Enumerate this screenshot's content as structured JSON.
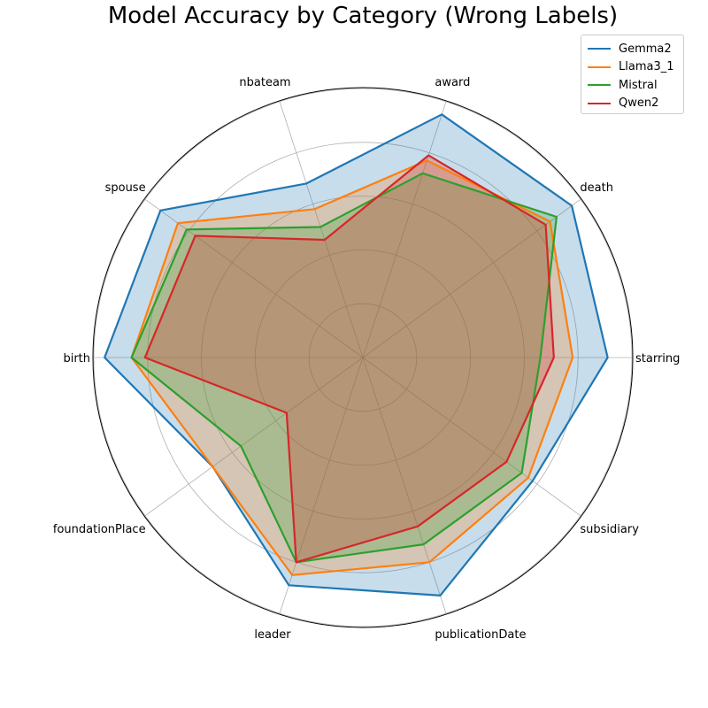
{
  "chart_data": {
    "type": "radar",
    "title": "Model Accuracy by Category (Wrong Labels)",
    "categories": [
      "starring",
      "death",
      "award",
      "nbateam",
      "spouse",
      "birth",
      "foundationPlace",
      "leader",
      "publicationDate",
      "subsidiary"
    ],
    "rlim": [
      0,
      100
    ],
    "grid": true,
    "legend_position": "top-right",
    "series": [
      {
        "name": "Gemma2",
        "color": "#1f77b4",
        "values": [
          91,
          96,
          95,
          68,
          93,
          96,
          69,
          89,
          93,
          78
        ]
      },
      {
        "name": "Llama3_1",
        "color": "#ff7f0e",
        "values": [
          78,
          86,
          77,
          58,
          85,
          86,
          69,
          85,
          80,
          76
        ]
      },
      {
        "name": "Mistral",
        "color": "#2ca02c",
        "values": [
          66,
          89,
          72,
          51,
          81,
          86,
          56,
          80,
          73,
          73
        ]
      },
      {
        "name": "Qwen2",
        "color": "#d62728",
        "values": [
          71,
          84,
          79,
          46,
          77,
          81,
          35,
          80,
          66,
          66
        ]
      }
    ]
  }
}
